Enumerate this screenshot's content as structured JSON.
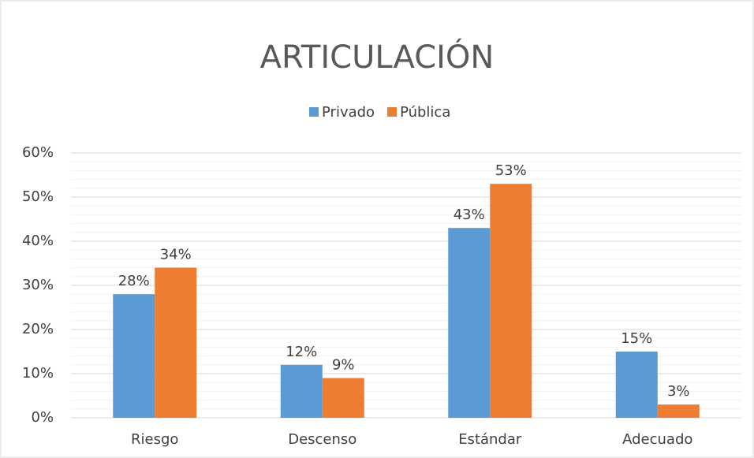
{
  "chart_data": {
    "type": "bar",
    "title": "ARTICULACIÓN",
    "categories": [
      "Riesgo",
      "Descenso",
      "Estándar",
      "Adecuado"
    ],
    "series": [
      {
        "name": "Privado",
        "color": "#5b9bd5",
        "values": [
          28,
          12,
          43,
          15
        ],
        "value_labels": [
          "28%",
          "12%",
          "43%",
          "15%"
        ]
      },
      {
        "name": "Pública",
        "color": "#ed7d31",
        "values": [
          34,
          9,
          53,
          3
        ],
        "value_labels": [
          "34%",
          "9%",
          "53%",
          "3%"
        ]
      }
    ],
    "ylim": [
      0,
      60
    ],
    "yticks": [
      {
        "value": 0,
        "label": "0%"
      },
      {
        "value": 10,
        "label": "10%"
      },
      {
        "value": 20,
        "label": "20%"
      },
      {
        "value": 30,
        "label": "30%"
      },
      {
        "value": 40,
        "label": "40%"
      },
      {
        "value": 50,
        "label": "50%"
      },
      {
        "value": 60,
        "label": "60%"
      }
    ],
    "grid": true,
    "legend": "top"
  }
}
